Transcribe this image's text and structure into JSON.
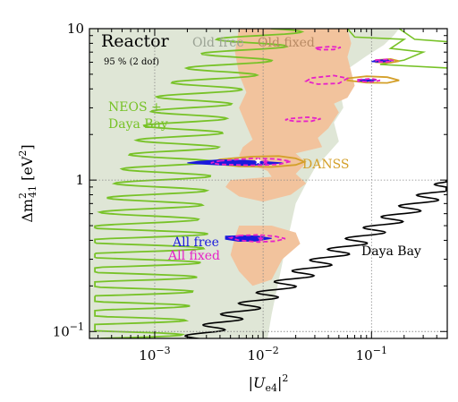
{
  "chart_data": {
    "type": "contour",
    "title": "Reactor",
    "subtitle": "95 % (2 dof)",
    "xlabel": "|U_e4|^2",
    "ylabel": "Δm^2_41 [eV^2]",
    "x_scale": "log",
    "y_scale": "log",
    "xlim": [
      0.00025,
      0.5
    ],
    "ylim": [
      0.09,
      10
    ],
    "x_ticks": [
      {
        "value": 0.001,
        "base": "10",
        "exp": "−3"
      },
      {
        "value": 0.01,
        "base": "10",
        "exp": "−2"
      },
      {
        "value": 0.1,
        "base": "10",
        "exp": "−1"
      }
    ],
    "y_ticks": [
      {
        "value": 0.1,
        "base": "10",
        "exp": "−1"
      },
      {
        "value": 1,
        "label": "1"
      },
      {
        "value": 10,
        "label": "10"
      }
    ],
    "grid": "dotted",
    "colors": {
      "old_free": "#dfe6d6",
      "old_fixed": "#f2c39d",
      "neos": "#77c227",
      "daya_bay": "#000000",
      "danss": "#d4a02a",
      "all_free": "#1a1adc",
      "all_fixed": "#e622c8",
      "label_gray": "#9aa294",
      "label_orange": "#b88a64"
    },
    "labels": {
      "old_free": "Old free",
      "old_fixed": "Old fixed",
      "neos": [
        "NEOS +",
        "Daya Bay"
      ],
      "danss": "DANSS",
      "daya_bay": "Daya Bay",
      "all_free": "All free",
      "all_fixed": "All fixed"
    },
    "regions": {
      "old_free": [
        [
          0.00025,
          10
        ],
        [
          0.18,
          10
        ],
        [
          0.16,
          9.0
        ],
        [
          0.13,
          7.8
        ],
        [
          0.09,
          6.6
        ],
        [
          0.06,
          5.4
        ],
        [
          0.05,
          4.2
        ],
        [
          0.055,
          3.0
        ],
        [
          0.045,
          2.4
        ],
        [
          0.05,
          1.8
        ],
        [
          0.04,
          1.5
        ],
        [
          0.03,
          1.2
        ],
        [
          0.025,
          0.95
        ],
        [
          0.02,
          0.7
        ],
        [
          0.018,
          0.5
        ],
        [
          0.016,
          0.35
        ],
        [
          0.014,
          0.22
        ],
        [
          0.012,
          0.13
        ],
        [
          0.011,
          0.09
        ],
        [
          0.00025,
          0.09
        ]
      ],
      "old_fixed": [
        [
          0.006,
          10
        ],
        [
          0.06,
          10
        ],
        [
          0.065,
          8
        ],
        [
          0.06,
          6.5
        ],
        [
          0.065,
          5.2
        ],
        [
          0.07,
          4.2
        ],
        [
          0.06,
          3.5
        ],
        [
          0.045,
          3.2
        ],
        [
          0.05,
          2.8
        ],
        [
          0.04,
          2.2
        ],
        [
          0.032,
          1.9
        ],
        [
          0.035,
          1.65
        ],
        [
          0.02,
          1.5
        ],
        [
          0.025,
          1.3
        ],
        [
          0.02,
          1.1
        ],
        [
          0.025,
          0.95
        ],
        [
          0.018,
          0.8
        ],
        [
          0.01,
          0.72
        ],
        [
          0.006,
          0.78
        ],
        [
          0.0045,
          0.9
        ],
        [
          0.005,
          1.0
        ],
        [
          0.012,
          1.05
        ],
        [
          0.011,
          1.15
        ],
        [
          0.008,
          1.25
        ],
        [
          0.006,
          1.45
        ],
        [
          0.0065,
          1.65
        ],
        [
          0.008,
          1.85
        ],
        [
          0.007,
          2.3
        ],
        [
          0.006,
          3.0
        ],
        [
          0.007,
          3.8
        ],
        [
          0.006,
          5.0
        ],
        [
          0.0055,
          7.0
        ]
      ],
      "old_fixed_low": [
        [
          0.006,
          0.5
        ],
        [
          0.012,
          0.5
        ],
        [
          0.02,
          0.45
        ],
        [
          0.022,
          0.38
        ],
        [
          0.015,
          0.3
        ],
        [
          0.012,
          0.22
        ],
        [
          0.008,
          0.2
        ],
        [
          0.006,
          0.25
        ],
        [
          0.005,
          0.32
        ],
        [
          0.0055,
          0.42
        ]
      ],
      "all_free": [
        [
          [
            0.0045,
            0.0065,
            0.009,
            0.012,
            0.0085,
            0.006,
            0.0045
          ],
          [
            0.426,
            0.43,
            0.426,
            0.412,
            0.396,
            0.394,
            0.407
          ]
        ],
        [
          [
            0.0025,
            0.004,
            0.007,
            0.011,
            0.015,
            0.011,
            0.007,
            0.004,
            0.0025,
            0.002
          ],
          [
            1.33,
            1.36,
            1.35,
            1.32,
            1.3,
            1.27,
            1.25,
            1.26,
            1.28,
            1.3
          ]
        ],
        [
          [
            0.075,
            0.095,
            0.11,
            0.09,
            0.075
          ],
          [
            4.6,
            4.62,
            4.56,
            4.48,
            4.52
          ]
        ],
        [
          [
            0.11,
            0.14,
            0.15,
            0.12,
            0.1
          ],
          [
            6.2,
            6.24,
            6.1,
            6.0,
            6.05
          ]
        ]
      ],
      "all_fixed": [
        [
          [
            0.006,
            0.009,
            0.013,
            0.016,
            0.013,
            0.009,
            0.006,
            0.005
          ],
          [
            0.43,
            0.435,
            0.425,
            0.41,
            0.395,
            0.39,
            0.4,
            0.415
          ]
        ],
        [
          [
            0.004,
            0.008,
            0.013,
            0.018,
            0.014,
            0.008,
            0.004,
            0.0033
          ],
          [
            1.34,
            1.39,
            1.38,
            1.33,
            1.27,
            1.25,
            1.27,
            1.3
          ]
        ],
        [
          [
            0.018,
            0.026,
            0.034,
            0.028,
            0.02,
            0.016
          ],
          [
            2.55,
            2.6,
            2.54,
            2.45,
            2.44,
            2.5
          ]
        ],
        [
          [
            0.028,
            0.045,
            0.06,
            0.05,
            0.032,
            0.025
          ],
          [
            4.72,
            4.9,
            4.7,
            4.35,
            4.3,
            4.5
          ]
        ],
        [
          [
            0.032,
            0.042,
            0.052,
            0.045,
            0.034,
            0.03
          ],
          [
            7.5,
            7.62,
            7.52,
            7.28,
            7.25,
            7.4
          ]
        ],
        [
          [
            0.11,
            0.14,
            0.16,
            0.135,
            0.11
          ],
          [
            6.2,
            6.27,
            6.15,
            6.02,
            6.05
          ]
        ],
        [
          [
            0.075,
            0.1,
            0.12,
            0.1,
            0.075
          ],
          [
            4.6,
            4.68,
            4.55,
            4.45,
            4.5
          ]
        ]
      ],
      "danss": [
        [
          [
            0.004,
            0.008,
            0.014,
            0.02,
            0.024,
            0.02,
            0.012,
            0.006,
            0.004,
            0.0035
          ],
          [
            1.37,
            1.43,
            1.44,
            1.39,
            1.32,
            1.26,
            1.22,
            1.23,
            1.27,
            1.32
          ]
        ],
        [
          [
            0.06,
            0.09,
            0.14,
            0.18,
            0.14,
            0.09,
            0.06
          ],
          [
            4.7,
            4.85,
            4.78,
            4.55,
            4.38,
            4.4,
            4.55
          ]
        ],
        [
          [
            0.11,
            0.15,
            0.18,
            0.15,
            0.11
          ],
          [
            6.2,
            6.3,
            6.1,
            5.95,
            6.0
          ]
        ]
      ]
    },
    "best_fit": [
      {
        "name": "all_free",
        "x": 0.009,
        "y": 1.33,
        "marker": "star"
      },
      {
        "name": "all_fixed",
        "x": 0.0095,
        "y": 0.41,
        "marker": "star"
      },
      {
        "name": "all_fixed",
        "x": 0.0105,
        "y": 1.32,
        "marker": "star"
      }
    ]
  }
}
